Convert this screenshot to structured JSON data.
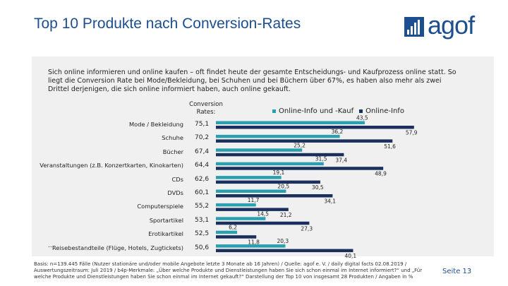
{
  "header": {
    "title": "Top 10 Produkte nach Conversion-Rates",
    "logo_text": "agof"
  },
  "intro": "Sich online informieren und online kaufen – oft findet heute der gesamte Entscheidungs- und Kaufprozess online statt. So liegt die Conversion Rate bei Mode/Bekleidung, bei Schuhen und bei Büchern über 67%, es haben also mehr als zwei Drittel derjenigen, die sich online informiert haben, auch online gekauft.",
  "conversion_header": "Conversion Rates:",
  "colors": {
    "series_a": "#2a9fb0",
    "series_b": "#1a2f5c",
    "title": "#1d4e8f"
  },
  "chart_data": {
    "type": "bar",
    "orientation": "horizontal",
    "categories": [
      "Mode / Bekleidung",
      "Schuhe",
      "Bücher",
      "Veranstaltungen (z.B. Konzertkarten, Kinokarten)",
      "CDs",
      "DVDs",
      "Computerspiele",
      "Sportartikel",
      "Erotikartikel",
      "Reisebestandteile (Flüge, Hotels, Zugtickets)"
    ],
    "conversion_rates": [
      "75,1",
      "70,2",
      "67,4",
      "64,4",
      "62,6",
      "60,1",
      "55,2",
      "53,1",
      "52,5",
      "50,6"
    ],
    "series": [
      {
        "name": "Online-Info und -Kauf",
        "values": [
          43.5,
          36.2,
          25.2,
          31.5,
          19.1,
          20.5,
          11.7,
          14.5,
          6.2,
          20.3
        ],
        "labels": [
          "43,5",
          "36,2",
          "25,2",
          "31,5",
          "19,1",
          "20,5",
          "11,7",
          "14,5",
          "6,2",
          "20,3"
        ]
      },
      {
        "name": "Online-Info",
        "values": [
          57.9,
          51.6,
          37.4,
          48.9,
          30.5,
          34.1,
          21.2,
          27.3,
          11.8,
          40.1
        ],
        "labels": [
          "57,9",
          "51,6",
          "37,4",
          "48,9",
          "30,5",
          "34,1",
          "21,2",
          "27,3",
          "11,8",
          "40,1"
        ]
      }
    ],
    "xlim": [
      0,
      60
    ]
  },
  "ellipsis": "...",
  "footnote": "Basis: n=139.445 Fälle (Nutzer stationäre und/oder mobile Angebote letzte 3 Monate ab 16 Jahren) / Quelle: agof e. V. / daily digital facts 02.08.2019 / Auswertungszeitraum: Juli 2019 / b4p-Merkmale: „Über welche Produkte und Dienstleistungen haben Sie sich schon einmal im Internet informiert?“ und „Für welche Produkte und Dienstleistungen haben Sie schon einmal im Internet gekauft?“ Darstellung der Top 10 von insgesamt 28 Produkten / Angaben in %",
  "page_number": "Seite 13"
}
